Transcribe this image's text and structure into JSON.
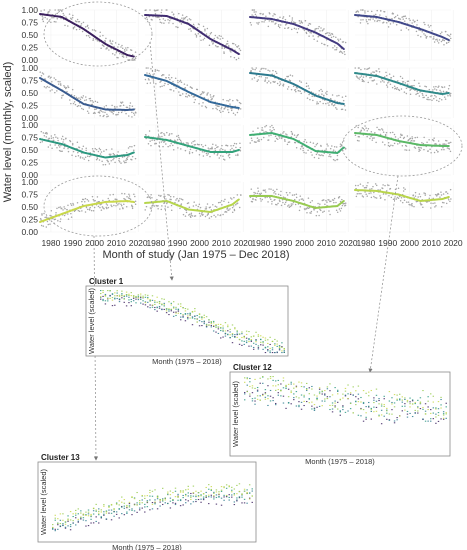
{
  "chart_data": {
    "type": "line",
    "ylabel": "Water level (monthly, scaled)",
    "xlabel": "Month of study (Jan 1975 – Dec 2018)",
    "x_ticks": [
      "1980",
      "1990",
      "2000",
      "2010",
      "2020"
    ],
    "x_tick_values": [
      1980,
      1990,
      2000,
      2010,
      2020
    ],
    "xlim": [
      1975,
      2019
    ],
    "y_ticks": [
      "0.00",
      "0.25",
      "0.50",
      "0.75",
      "1.00"
    ],
    "ylim": [
      0,
      1
    ],
    "grid": "4x4 small multiples",
    "point_color": "#a6a6a6",
    "line_colors_by_row": [
      [
        "#3b1f5e",
        "#3f2b70",
        "#433a80",
        "#40488a"
      ],
      [
        "#3a5b8f",
        "#33699a",
        "#2c7a8e",
        "#2f8a8a"
      ],
      [
        "#2c9880",
        "#33a37b",
        "#3fae72",
        "#5bb966"
      ],
      [
        "#c9d84a",
        "#b6d54b",
        "#98cb50",
        "#b8d44a"
      ]
    ],
    "panels": [
      {
        "cluster": 1,
        "x": [
          1975,
          1985,
          1995,
          2005,
          2015,
          2018
        ],
        "y": [
          0.92,
          0.86,
          0.62,
          0.32,
          0.1,
          0.07
        ]
      },
      {
        "cluster": 2,
        "x": [
          1975,
          1985,
          1995,
          2005,
          2015,
          2018
        ],
        "y": [
          0.9,
          0.88,
          0.72,
          0.42,
          0.2,
          0.12
        ]
      },
      {
        "cluster": 3,
        "x": [
          1975,
          1985,
          1995,
          2005,
          2015,
          2018
        ],
        "y": [
          0.86,
          0.82,
          0.72,
          0.55,
          0.33,
          0.22
        ]
      },
      {
        "cluster": 4,
        "x": [
          1975,
          1985,
          1995,
          2005,
          2015,
          2018
        ],
        "y": [
          0.9,
          0.86,
          0.76,
          0.62,
          0.46,
          0.4
        ]
      },
      {
        "cluster": 5,
        "x": [
          1975,
          1985,
          1995,
          2005,
          2015,
          2018
        ],
        "y": [
          0.8,
          0.55,
          0.28,
          0.17,
          0.16,
          0.17
        ]
      },
      {
        "cluster": 6,
        "x": [
          1975,
          1985,
          1995,
          2005,
          2015,
          2018
        ],
        "y": [
          0.86,
          0.74,
          0.52,
          0.32,
          0.22,
          0.2
        ]
      },
      {
        "cluster": 7,
        "x": [
          1975,
          1985,
          1995,
          2005,
          2015,
          2018
        ],
        "y": [
          0.9,
          0.85,
          0.68,
          0.45,
          0.3,
          0.28
        ]
      },
      {
        "cluster": 8,
        "x": [
          1975,
          1985,
          1995,
          2005,
          2015,
          2018
        ],
        "y": [
          0.9,
          0.84,
          0.7,
          0.55,
          0.48,
          0.5
        ]
      },
      {
        "cluster": 9,
        "x": [
          1975,
          1985,
          1995,
          2005,
          2015,
          2018
        ],
        "y": [
          0.72,
          0.62,
          0.45,
          0.35,
          0.4,
          0.45
        ]
      },
      {
        "cluster": 10,
        "x": [
          1975,
          1985,
          1995,
          2005,
          2015,
          2018
        ],
        "y": [
          0.76,
          0.7,
          0.58,
          0.46,
          0.46,
          0.5
        ]
      },
      {
        "cluster": 11,
        "x": [
          1975,
          1985,
          1995,
          2005,
          2015,
          2018
        ],
        "y": [
          0.8,
          0.84,
          0.72,
          0.48,
          0.44,
          0.55
        ]
      },
      {
        "cluster": 12,
        "x": [
          1975,
          1985,
          1995,
          2005,
          2015,
          2018
        ],
        "y": [
          0.84,
          0.8,
          0.68,
          0.6,
          0.58,
          0.58
        ]
      },
      {
        "cluster": 13,
        "x": [
          1975,
          1985,
          1995,
          2005,
          2015,
          2018
        ],
        "y": [
          0.2,
          0.36,
          0.52,
          0.6,
          0.62,
          0.6
        ]
      },
      {
        "cluster": 14,
        "x": [
          1975,
          1985,
          1995,
          2005,
          2015,
          2018
        ],
        "y": [
          0.58,
          0.62,
          0.45,
          0.4,
          0.55,
          0.65
        ]
      },
      {
        "cluster": 15,
        "x": [
          1975,
          1985,
          1995,
          2005,
          2015,
          2018
        ],
        "y": [
          0.72,
          0.72,
          0.62,
          0.48,
          0.52,
          0.62
        ]
      },
      {
        "cluster": 16,
        "x": [
          1975,
          1985,
          1995,
          2005,
          2015,
          2018
        ],
        "y": [
          0.84,
          0.82,
          0.75,
          0.62,
          0.66,
          0.7
        ]
      }
    ],
    "insets": [
      {
        "title": "Cluster 1",
        "xlabel": "Month (1975 – 2018)",
        "ylabel": "Water level (scaled)",
        "highlights_panel": 1,
        "series_colors": [
          "#3b1f5e",
          "#2c7a8e",
          "#2c9880",
          "#c9d84a",
          "#98cb50"
        ],
        "y": [
          0.92,
          0.86,
          0.62,
          0.32,
          0.1,
          0.07
        ]
      },
      {
        "title": "Cluster 12",
        "xlabel": "Month (1975 – 2018)",
        "ylabel": "Water level (scaled)",
        "highlights_panel": 12,
        "series_colors": [
          "#3b1f5e",
          "#2c7a8e",
          "#2c9880",
          "#c9d84a",
          "#98cb50"
        ],
        "y": [
          0.84,
          0.8,
          0.68,
          0.6,
          0.58,
          0.58
        ]
      },
      {
        "title": "Cluster 13",
        "xlabel": "Month (1975 – 2018)",
        "ylabel": "Water level (scaled)",
        "highlights_panel": 13,
        "series_colors": [
          "#3b1f5e",
          "#2c7a8e",
          "#2c9880",
          "#c9d84a",
          "#98cb50"
        ],
        "y": [
          0.2,
          0.36,
          0.52,
          0.6,
          0.62,
          0.6
        ]
      }
    ]
  }
}
